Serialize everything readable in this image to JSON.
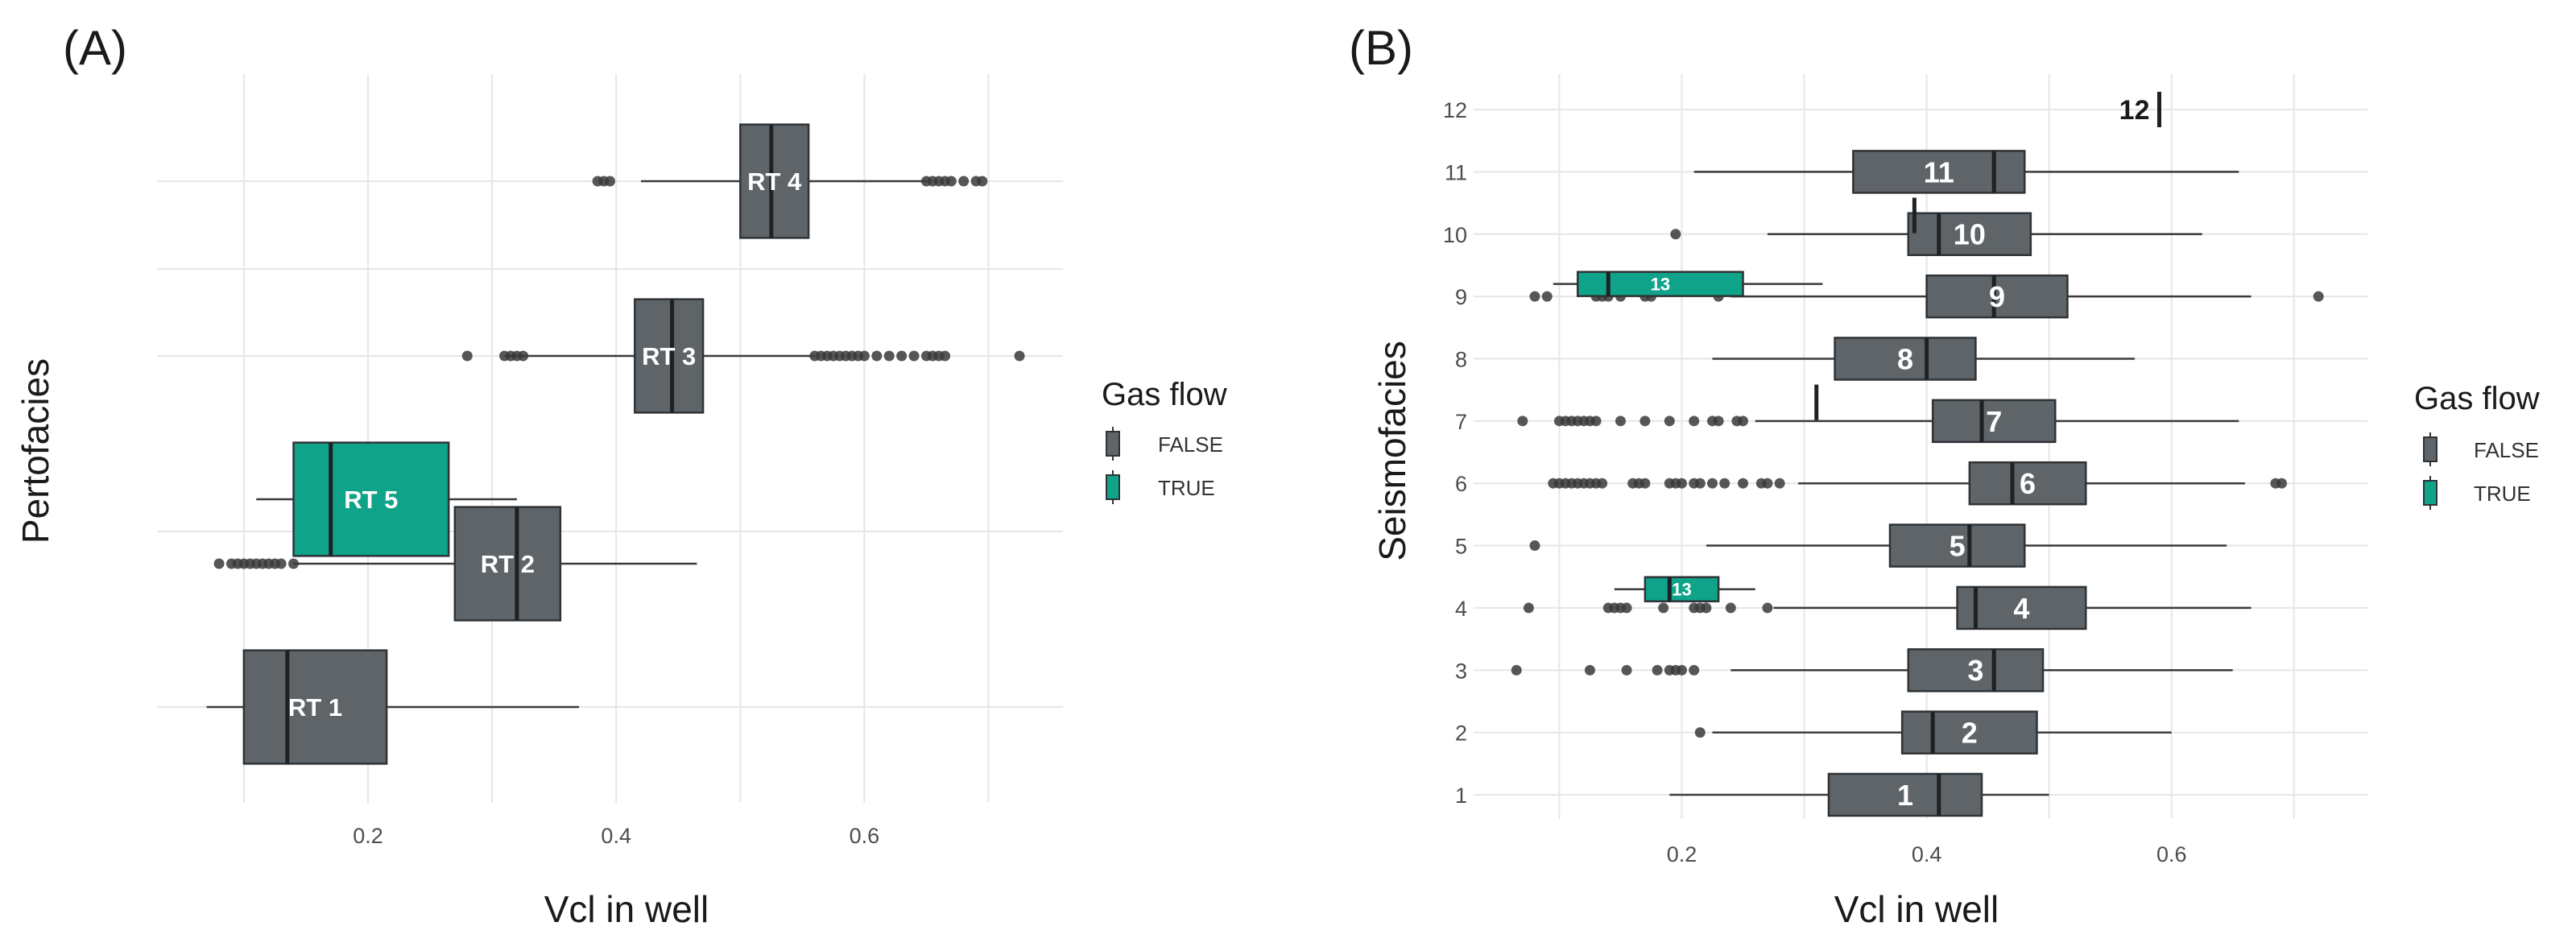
{
  "chart_data": [
    {
      "panel": "(A)",
      "type": "boxplot",
      "xlabel": "Vcl in well",
      "ylabel": "Pertofacies",
      "xlim": [
        0.03,
        0.76
      ],
      "x_ticks": [
        0.2,
        0.4,
        0.6
      ],
      "x_tick_labels": [
        "0.2",
        "0.4",
        "0.6"
      ],
      "rows": [
        {
          "label": "RT 1",
          "gas_flow": "FALSE",
          "min": 0.07,
          "q1": 0.1,
          "median": 0.135,
          "q3": 0.215,
          "max": 0.37,
          "outliers": []
        },
        {
          "label": "RT 2",
          "gas_flow": "FALSE",
          "min": 0.14,
          "q1": 0.27,
          "median": 0.32,
          "q3": 0.355,
          "max": 0.465,
          "outliers": [
            0.08,
            0.09,
            0.095,
            0.1,
            0.105,
            0.11,
            0.115,
            0.12,
            0.125,
            0.13,
            0.14
          ]
        },
        {
          "label": "RT 5",
          "gas_flow": "TRUE",
          "min": 0.11,
          "q1": 0.14,
          "median": 0.17,
          "q3": 0.265,
          "max": 0.32,
          "outliers": []
        },
        {
          "label": "RT 3",
          "gas_flow": "FALSE",
          "min": 0.31,
          "q1": 0.415,
          "median": 0.445,
          "q3": 0.47,
          "max": 0.56,
          "outliers": [
            0.28,
            0.31,
            0.315,
            0.32,
            0.325,
            0.56,
            0.565,
            0.57,
            0.575,
            0.58,
            0.585,
            0.59,
            0.595,
            0.6,
            0.61,
            0.62,
            0.63,
            0.64,
            0.65,
            0.655,
            0.66,
            0.665,
            0.725
          ]
        },
        {
          "label": "RT 4",
          "gas_flow": "FALSE",
          "min": 0.42,
          "q1": 0.5,
          "median": 0.525,
          "q3": 0.555,
          "max": 0.65,
          "outliers": [
            0.385,
            0.39,
            0.395,
            0.65,
            0.655,
            0.66,
            0.665,
            0.67,
            0.68,
            0.69,
            0.695
          ]
        }
      ],
      "legend": {
        "title": "Gas flow",
        "entries": [
          "FALSE",
          "TRUE"
        ]
      }
    },
    {
      "panel": "(B)",
      "type": "boxplot",
      "xlabel": "Vcl in well",
      "ylabel": "Seismofacies",
      "xlim": [
        0.03,
        0.76
      ],
      "x_ticks": [
        0.2,
        0.4,
        0.6
      ],
      "x_tick_labels": [
        "0.2",
        "0.4",
        "0.6"
      ],
      "y_ticks": [
        "1",
        "2",
        "3",
        "4",
        "5",
        "6",
        "7",
        "8",
        "9",
        "10",
        "11",
        "12"
      ],
      "rows": [
        {
          "label": "1",
          "category": 1,
          "gas_flow": "FALSE",
          "min": 0.19,
          "q1": 0.32,
          "median": 0.41,
          "q3": 0.445,
          "max": 0.5,
          "outliers": []
        },
        {
          "label": "2",
          "category": 2,
          "gas_flow": "FALSE",
          "min": 0.225,
          "q1": 0.38,
          "median": 0.405,
          "q3": 0.49,
          "max": 0.6,
          "outliers": [
            0.215
          ]
        },
        {
          "label": "3",
          "category": 3,
          "gas_flow": "FALSE",
          "min": 0.24,
          "q1": 0.385,
          "median": 0.455,
          "q3": 0.495,
          "max": 0.65,
          "outliers": [
            0.065,
            0.125,
            0.155,
            0.18,
            0.19,
            0.195,
            0.2,
            0.21
          ]
        },
        {
          "label": "4",
          "category": 4,
          "gas_flow": "FALSE",
          "min": 0.275,
          "q1": 0.425,
          "median": 0.44,
          "q3": 0.53,
          "max": 0.665,
          "outliers": [
            0.075,
            0.14,
            0.145,
            0.15,
            0.155,
            0.185,
            0.21,
            0.215,
            0.22,
            0.24,
            0.27
          ]
        },
        {
          "label": "13",
          "category": 4.3,
          "gas_flow": "TRUE",
          "min": 0.145,
          "q1": 0.17,
          "median": 0.19,
          "q3": 0.23,
          "max": 0.26,
          "outliers": []
        },
        {
          "label": "5",
          "category": 5,
          "gas_flow": "FALSE",
          "min": 0.22,
          "q1": 0.37,
          "median": 0.435,
          "q3": 0.48,
          "max": 0.645,
          "outliers": [
            0.08
          ]
        },
        {
          "label": "6",
          "category": 6,
          "gas_flow": "FALSE",
          "min": 0.295,
          "q1": 0.435,
          "median": 0.47,
          "q3": 0.53,
          "max": 0.66,
          "outliers": [
            0.095,
            0.1,
            0.105,
            0.11,
            0.115,
            0.12,
            0.125,
            0.13,
            0.135,
            0.16,
            0.165,
            0.17,
            0.19,
            0.195,
            0.2,
            0.21,
            0.215,
            0.225,
            0.235,
            0.25,
            0.265,
            0.27,
            0.28,
            0.685,
            0.69
          ]
        },
        {
          "label": "7",
          "category": 7,
          "gas_flow": "FALSE",
          "min": 0.26,
          "q1": 0.405,
          "median": 0.445,
          "q3": 0.505,
          "max": 0.655,
          "outliers": [
            0.07,
            0.1,
            0.105,
            0.11,
            0.115,
            0.12,
            0.125,
            0.13,
            0.15,
            0.17,
            0.19,
            0.21,
            0.225,
            0.23,
            0.245,
            0.25
          ]
        },
        {
          "label": "",
          "category": 7.3,
          "gas_flow": "FALSE",
          "min": 0.31,
          "q1": 0.31,
          "median": 0.31,
          "q3": 0.31,
          "max": 0.31,
          "outliers": []
        },
        {
          "label": "8",
          "category": 8,
          "gas_flow": "FALSE",
          "min": 0.225,
          "q1": 0.325,
          "median": 0.4,
          "q3": 0.44,
          "max": 0.57,
          "outliers": []
        },
        {
          "label": "9",
          "category": 9,
          "gas_flow": "FALSE",
          "min": 0.24,
          "q1": 0.4,
          "median": 0.455,
          "q3": 0.515,
          "max": 0.665,
          "outliers": [
            0.08,
            0.09,
            0.13,
            0.135,
            0.14,
            0.15,
            0.17,
            0.175,
            0.23,
            0.72
          ]
        },
        {
          "label": "13",
          "category": 9.2,
          "gas_flow": "TRUE",
          "min": 0.095,
          "q1": 0.115,
          "median": 0.14,
          "q3": 0.25,
          "max": 0.315,
          "outliers": []
        },
        {
          "label": "10",
          "category": 10,
          "gas_flow": "FALSE",
          "min": 0.27,
          "q1": 0.385,
          "median": 0.41,
          "q3": 0.485,
          "max": 0.625,
          "outliers": [
            0.195
          ]
        },
        {
          "label": "",
          "category": 10.3,
          "gas_flow": "FALSE",
          "min": 0.39,
          "q1": 0.39,
          "median": 0.39,
          "q3": 0.39,
          "max": 0.39,
          "outliers": []
        },
        {
          "label": "11",
          "category": 11,
          "gas_flow": "FALSE",
          "min": 0.21,
          "q1": 0.34,
          "median": 0.455,
          "q3": 0.48,
          "max": 0.655,
          "outliers": []
        },
        {
          "label": "12",
          "category": 12,
          "gas_flow": "FALSE",
          "min": 0.59,
          "q1": 0.59,
          "median": 0.59,
          "q3": 0.59,
          "max": 0.59,
          "outliers": [],
          "label_outside": true
        }
      ],
      "legend": {
        "title": "Gas flow",
        "entries": [
          "FALSE",
          "TRUE"
        ]
      }
    }
  ],
  "colors": {
    "false_fill": "#5f6468",
    "true_fill": "#0fa38a",
    "box_stroke": "#2f3336",
    "grid": "#e6e6e6",
    "point": "#3a3a3a",
    "whisker": "#3a3a3a"
  }
}
